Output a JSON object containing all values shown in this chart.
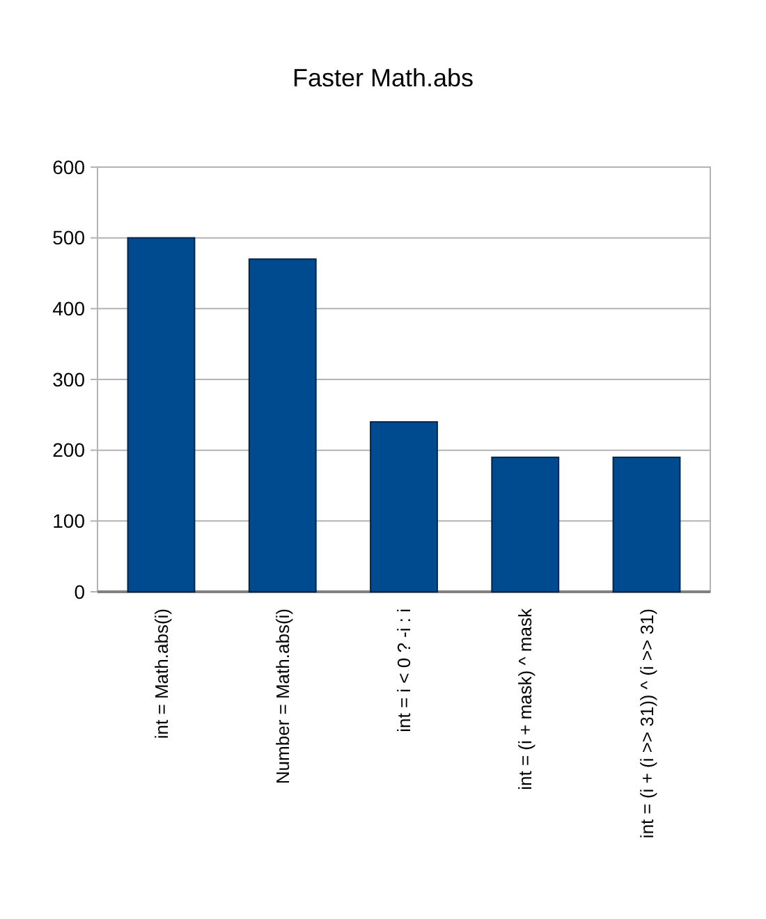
{
  "chart_data": {
    "type": "bar",
    "title": "Faster Math.abs",
    "categories": [
      "int = Math.abs(i)",
      "Number = Math.abs(i)",
      "int = i < 0 ? -i : i",
      "int = (i + mask) ^ mask",
      "int = (i + (i >> 31)) ^ (i >> 31)"
    ],
    "values": [
      500,
      470,
      240,
      190,
      190
    ],
    "color": "#004a8f",
    "ylim": [
      0,
      600
    ],
    "yticks": [
      0,
      100,
      200,
      300,
      400,
      500,
      600
    ],
    "grid": "y"
  }
}
